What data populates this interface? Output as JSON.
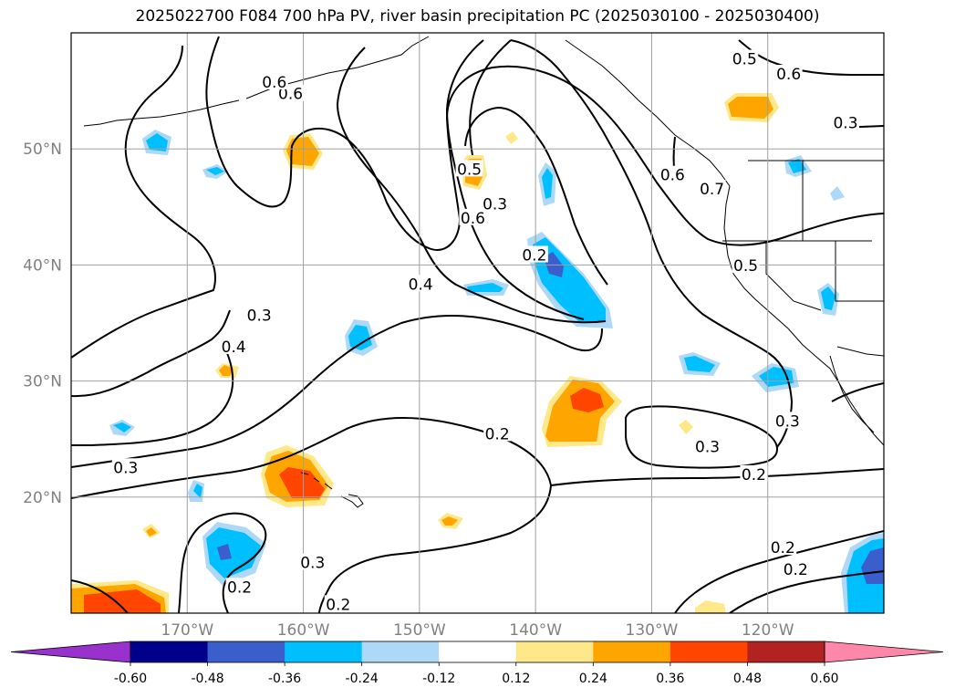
{
  "title": "2025022700 F084 700 hPa PV, river basin precipitation PC (2025030100 - 2025030400)",
  "map": {
    "lat_labels": [
      "50°N",
      "40°N",
      "30°N",
      "20°N"
    ],
    "lon_labels": [
      "170°W",
      "160°W",
      "150°W",
      "140°W",
      "130°W",
      "120°W"
    ],
    "gridlines": true
  },
  "contour_labels": [
    {
      "text": "0.5",
      "lon": -122.0,
      "lat": 57.6
    },
    {
      "text": "0.6",
      "lon": -118.2,
      "lat": 56.3
    },
    {
      "text": "0.6",
      "lon": -161.1,
      "lat": 54.6
    },
    {
      "text": "0.6",
      "lon": -162.5,
      "lat": 55.6
    },
    {
      "text": "0.3",
      "lon": -113.3,
      "lat": 52.1
    },
    {
      "text": "0.7",
      "lon": -124.8,
      "lat": 46.4
    },
    {
      "text": "0.6",
      "lon": -128.2,
      "lat": 47.6
    },
    {
      "text": "0.5",
      "lon": -145.7,
      "lat": 48.1
    },
    {
      "text": "0.6",
      "lon": -145.4,
      "lat": 43.9
    },
    {
      "text": "0.3",
      "lon": -143.5,
      "lat": 45.1
    },
    {
      "text": "0.2",
      "lon": -140.1,
      "lat": 40.7
    },
    {
      "text": "0.4",
      "lon": -149.9,
      "lat": 38.2
    },
    {
      "text": "0.5",
      "lon": -121.9,
      "lat": 39.8
    },
    {
      "text": "0.3",
      "lon": -163.8,
      "lat": 35.5
    },
    {
      "text": "0.4",
      "lon": -166.0,
      "lat": 32.8
    },
    {
      "text": "0.2",
      "lon": -143.3,
      "lat": 25.3
    },
    {
      "text": "0.3",
      "lon": -125.2,
      "lat": 24.2
    },
    {
      "text": "0.3",
      "lon": -118.3,
      "lat": 26.4
    },
    {
      "text": "0.2",
      "lon": -121.2,
      "lat": 21.8
    },
    {
      "text": "0.3",
      "lon": -175.3,
      "lat": 22.4
    },
    {
      "text": "0.3",
      "lon": -159.2,
      "lat": 14.2
    },
    {
      "text": "0.2",
      "lon": -165.5,
      "lat": 12.1
    },
    {
      "text": "0.2",
      "lon": -118.7,
      "lat": 15.5
    },
    {
      "text": "0.2",
      "lon": -117.6,
      "lat": 13.6
    },
    {
      "text": "0.2",
      "lon": -157.0,
      "lat": 10.6
    }
  ],
  "colorbar": {
    "levels": [
      "-0.60",
      "-0.48",
      "-0.36",
      "-0.24",
      "-0.12",
      "0.12",
      "0.24",
      "0.36",
      "0.48",
      "0.60"
    ],
    "colors": [
      "#9932cc",
      "#00008b",
      "#3a5fcd",
      "#00bfff",
      "#add8f7",
      "#ffffff",
      "#ffe88a",
      "#ffa500",
      "#ff4500",
      "#b22222",
      "#ff88aa"
    ]
  }
}
